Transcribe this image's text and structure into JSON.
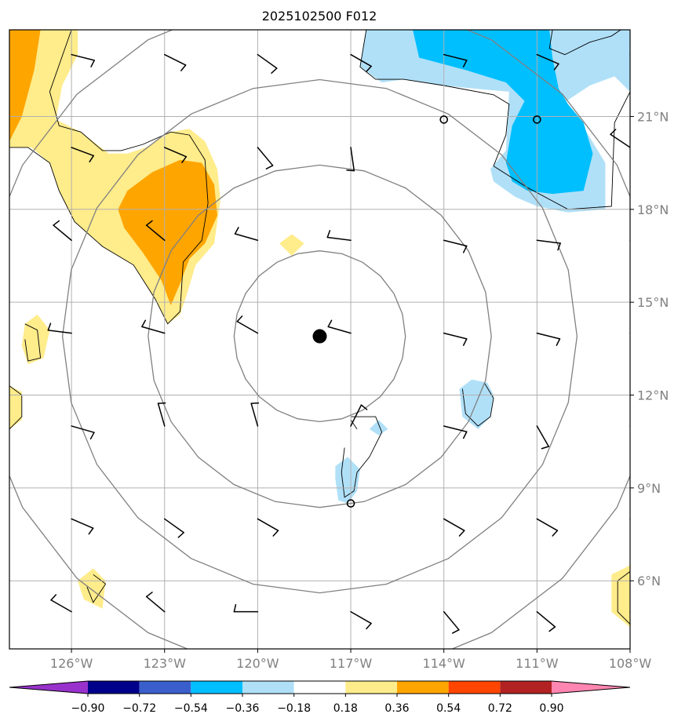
{
  "chart_data": {
    "type": "heatmap",
    "title": "2025102500 F012",
    "projection": "lat-lon map",
    "xlim": [
      -128,
      -108
    ],
    "ylim": [
      3.8,
      23.8
    ],
    "x_ticks": [
      -126,
      -123,
      -120,
      -117,
      -114,
      -111,
      -108
    ],
    "x_tick_labels": [
      "126°W",
      "123°W",
      "120°W",
      "117°W",
      "114°W",
      "111°W",
      "108°W"
    ],
    "y_ticks": [
      6,
      9,
      12,
      15,
      18,
      21
    ],
    "y_tick_labels": [
      "6°N",
      "9°N",
      "12°N",
      "15°N",
      "18°N",
      "21°N"
    ],
    "grid": true,
    "storm_center": {
      "lon": -118,
      "lat": 13.9
    },
    "range_rings_deg": [
      2.76,
      5.53,
      8.29,
      11.06
    ],
    "colorbar": {
      "orientation": "horizontal",
      "extend": "both",
      "levels": [
        -0.9,
        -0.72,
        -0.54,
        -0.36,
        -0.18,
        0.18,
        0.36,
        0.54,
        0.72,
        0.9
      ],
      "tick_labels": [
        "−0.90",
        "−0.72",
        "−0.54",
        "−0.36",
        "−0.18",
        "0.18",
        "0.36",
        "0.54",
        "0.72",
        "0.90"
      ],
      "colors": [
        "#9932cc",
        "#00008b",
        "#3a5fcd",
        "#00bfff",
        "#b0e0f8",
        "#ffffff",
        "#ffec8b",
        "#ffa500",
        "#ff4500",
        "#b22222",
        "#ff86b0"
      ]
    },
    "shaded_regions": [
      {
        "level": 0.18,
        "color": "#ffec8b",
        "points": [
          [
            -128,
            23.8
          ],
          [
            -125.8,
            23.8
          ],
          [
            -125.8,
            23.0
          ],
          [
            -126.3,
            22.0
          ],
          [
            -126.5,
            20.9
          ],
          [
            -125.7,
            20.5
          ],
          [
            -124.8,
            19.8
          ],
          [
            -124.2,
            19.8
          ],
          [
            -123.6,
            20.0
          ],
          [
            -122.8,
            20.5
          ],
          [
            -122.2,
            20.6
          ],
          [
            -121.7,
            20.2
          ],
          [
            -121.3,
            19.3
          ],
          [
            -121.2,
            18.3
          ],
          [
            -121.4,
            16.9
          ],
          [
            -122.0,
            16.2
          ],
          [
            -122.3,
            15.2
          ],
          [
            -122.5,
            14.6
          ],
          [
            -122.9,
            14.3
          ],
          [
            -123.3,
            15.1
          ],
          [
            -124.0,
            16.2
          ],
          [
            -125.0,
            16.8
          ],
          [
            -125.9,
            17.6
          ],
          [
            -126.4,
            18.6
          ],
          [
            -126.7,
            19.5
          ],
          [
            -127.3,
            20.0
          ],
          [
            -128,
            20.0
          ]
        ]
      },
      {
        "level": 0.36,
        "color": "#ffa500",
        "points": [
          [
            -128,
            23.8
          ],
          [
            -127.0,
            23.8
          ],
          [
            -127.2,
            22.5
          ],
          [
            -127.6,
            21.0
          ],
          [
            -128,
            20.2
          ]
        ]
      },
      {
        "level": 0.36,
        "color": "#ffa500",
        "points": [
          [
            -124.2,
            18.6
          ],
          [
            -123.4,
            19.2
          ],
          [
            -122.5,
            19.6
          ],
          [
            -121.8,
            19.5
          ],
          [
            -121.4,
            18.8
          ],
          [
            -121.3,
            17.8
          ],
          [
            -121.7,
            16.9
          ],
          [
            -122.2,
            16.4
          ],
          [
            -122.5,
            15.6
          ],
          [
            -122.8,
            14.9
          ],
          [
            -123.1,
            15.7
          ],
          [
            -123.7,
            16.6
          ],
          [
            -124.3,
            17.4
          ],
          [
            -124.5,
            18.0
          ]
        ]
      },
      {
        "level": 0.18,
        "color": "#ffec8b",
        "points": [
          [
            -127.5,
            14.3
          ],
          [
            -127.1,
            14.6
          ],
          [
            -126.7,
            14.1
          ],
          [
            -126.9,
            13.2
          ],
          [
            -127.4,
            13.0
          ],
          [
            -127.6,
            13.6
          ]
        ]
      },
      {
        "level": 0.18,
        "color": "#ffec8b",
        "points": [
          [
            -128,
            12.3
          ],
          [
            -127.6,
            12.1
          ],
          [
            -127.6,
            11.2
          ],
          [
            -128,
            10.9
          ]
        ]
      },
      {
        "level": 0.18,
        "color": "#ffec8b",
        "points": [
          [
            -118.9,
            17.2
          ],
          [
            -118.5,
            16.9
          ],
          [
            -118.9,
            16.5
          ],
          [
            -119.3,
            16.9
          ]
        ]
      },
      {
        "level": 0.18,
        "color": "#ffec8b",
        "points": [
          [
            -125.3,
            6.4
          ],
          [
            -124.9,
            6.0
          ],
          [
            -125.0,
            5.1
          ],
          [
            -125.6,
            5.4
          ],
          [
            -125.8,
            6.0
          ]
        ]
      },
      {
        "level": 0.18,
        "color": "#ffec8b",
        "points": [
          [
            -108,
            6.5
          ],
          [
            -108.6,
            6.2
          ],
          [
            -108.6,
            5.0
          ],
          [
            -108,
            4.5
          ]
        ]
      },
      {
        "level": -0.18,
        "color": "#b0e0f8",
        "points": [
          [
            -116.5,
            23.8
          ],
          [
            -108,
            23.8
          ],
          [
            -108,
            21.8
          ],
          [
            -108.5,
            22.3
          ],
          [
            -109.3,
            22.0
          ],
          [
            -110.2,
            21.4
          ],
          [
            -109.4,
            20.5
          ],
          [
            -108.8,
            19.5
          ],
          [
            -108.8,
            18.0
          ],
          [
            -110.0,
            17.9
          ],
          [
            -111.0,
            18.1
          ],
          [
            -111.7,
            18.4
          ],
          [
            -112.4,
            18.9
          ],
          [
            -112.5,
            19.3
          ],
          [
            -112.0,
            19.9
          ],
          [
            -111.9,
            21.8
          ],
          [
            -113.0,
            21.9
          ],
          [
            -114.0,
            22.0
          ],
          [
            -115.3,
            22.2
          ],
          [
            -116.0,
            22.1
          ],
          [
            -116.7,
            22.6
          ]
        ]
      },
      {
        "level": -0.36,
        "color": "#00bfff",
        "points": [
          [
            -115.0,
            23.8
          ],
          [
            -110.6,
            23.8
          ],
          [
            -110.5,
            22.9
          ],
          [
            -110.3,
            21.9
          ],
          [
            -110.0,
            21.4
          ],
          [
            -109.5,
            20.8
          ],
          [
            -109.2,
            19.8
          ],
          [
            -109.5,
            18.6
          ],
          [
            -110.5,
            18.5
          ],
          [
            -111.3,
            18.6
          ],
          [
            -111.8,
            18.9
          ],
          [
            -112.0,
            19.5
          ],
          [
            -111.8,
            20.7
          ],
          [
            -111.4,
            21.5
          ],
          [
            -112.0,
            22.1
          ],
          [
            -113.3,
            22.5
          ],
          [
            -114.8,
            22.9
          ]
        ]
      },
      {
        "level": -0.18,
        "color": "#b0e0f8",
        "points": [
          [
            -112.6,
            12.4
          ],
          [
            -112.4,
            12.0
          ],
          [
            -112.5,
            11.3
          ],
          [
            -112.9,
            10.9
          ],
          [
            -113.4,
            11.3
          ],
          [
            -113.5,
            12.2
          ],
          [
            -113.1,
            12.5
          ]
        ]
      },
      {
        "level": -0.18,
        "color": "#b0e0f8",
        "points": [
          [
            -117.1,
            10.0
          ],
          [
            -116.7,
            9.6
          ],
          [
            -116.8,
            8.9
          ],
          [
            -117.1,
            8.5
          ],
          [
            -117.4,
            8.6
          ],
          [
            -117.5,
            9.3
          ],
          [
            -117.5,
            9.7
          ]
        ]
      },
      {
        "level": -0.18,
        "color": "#b0e0f8",
        "points": [
          [
            -116.1,
            11.2
          ],
          [
            -115.8,
            10.9
          ],
          [
            -116.1,
            10.7
          ],
          [
            -116.4,
            10.9
          ]
        ]
      }
    ],
    "zero_contours": [
      [
        [
          -108.0,
          24.0
        ],
        [
          -108.6,
          23.6
        ],
        [
          -109.3,
          23.4
        ],
        [
          -110.1,
          23.0
        ],
        [
          -110.6,
          23.2
        ],
        [
          -110.5,
          23.8
        ]
      ],
      [
        [
          -116.5,
          23.8
        ],
        [
          -116.7,
          22.6
        ],
        [
          -116.2,
          22.2
        ],
        [
          -115.3,
          22.2
        ],
        [
          -114.0,
          22.0
        ],
        [
          -112.4,
          21.7
        ],
        [
          -111.9,
          21.4
        ],
        [
          -112.0,
          20.4
        ],
        [
          -112.4,
          19.4
        ],
        [
          -111.3,
          18.7
        ],
        [
          -110.0,
          18.0
        ],
        [
          -108.6,
          18.1
        ],
        [
          -108.5,
          20.8
        ],
        [
          -108.0,
          21.8
        ]
      ],
      [
        [
          -128,
          20.0
        ],
        [
          -127.4,
          20.0
        ],
        [
          -126.7,
          19.5
        ],
        [
          -126.4,
          18.6
        ],
        [
          -125.9,
          17.6
        ],
        [
          -125.0,
          16.8
        ],
        [
          -124.0,
          16.2
        ],
        [
          -123.3,
          15.1
        ],
        [
          -122.9,
          14.3
        ],
        [
          -122.5,
          14.7
        ],
        [
          -122.4,
          16.3
        ],
        [
          -121.8,
          17.0
        ],
        [
          -121.6,
          18.2
        ],
        [
          -121.7,
          19.6
        ],
        [
          -122.2,
          20.4
        ],
        [
          -122.8,
          20.5
        ],
        [
          -123.7,
          20.1
        ],
        [
          -124.4,
          19.9
        ],
        [
          -125.0,
          19.9
        ],
        [
          -125.7,
          20.5
        ],
        [
          -126.4,
          20.7
        ],
        [
          -126.7,
          21.8
        ],
        [
          -126.0,
          23.8
        ]
      ],
      [
        [
          -127.5,
          14.3
        ],
        [
          -127.1,
          14.1
        ],
        [
          -127.0,
          13.2
        ],
        [
          -127.4,
          13.1
        ],
        [
          -127.5,
          13.8
        ]
      ],
      [
        [
          -128,
          12.3
        ],
        [
          -127.6,
          12.0
        ],
        [
          -127.6,
          11.3
        ],
        [
          -128,
          10.9
        ]
      ],
      [
        [
          -112.7,
          12.4
        ],
        [
          -112.4,
          11.9
        ],
        [
          -112.5,
          11.3
        ],
        [
          -112.9,
          11.0
        ],
        [
          -113.3,
          11.4
        ],
        [
          -113.4,
          12.2
        ]
      ],
      [
        [
          -117.0,
          11.3
        ],
        [
          -116.2,
          11.3
        ],
        [
          -116.0,
          10.8
        ],
        [
          -116.4,
          10.0
        ],
        [
          -116.8,
          9.5
        ],
        [
          -116.9,
          8.9
        ],
        [
          -117.2,
          8.7
        ],
        [
          -117.3,
          9.5
        ],
        [
          -117.2,
          10.3
        ]
      ],
      [
        [
          -117.0,
          11.2
        ],
        [
          -116.8,
          10.9
        ]
      ],
      [
        [
          -125.3,
          6.2
        ],
        [
          -124.9,
          5.9
        ],
        [
          -125.3,
          5.3
        ],
        [
          -125.5,
          5.8
        ]
      ],
      [
        [
          -108,
          6.3
        ],
        [
          -108.4,
          6.0
        ],
        [
          -108.4,
          5.0
        ],
        [
          -108,
          4.6
        ]
      ]
    ],
    "point_markers": [
      {
        "lon": -118.0,
        "lat": 13.9,
        "type": "filled_circle"
      },
      {
        "lon": -114.0,
        "lat": 20.9,
        "type": "open_circle"
      },
      {
        "lon": -111.0,
        "lat": 20.9,
        "type": "open_circle"
      },
      {
        "lon": -117.0,
        "lat": 8.5,
        "type": "open_circle"
      }
    ],
    "wind_barbs": [
      {
        "lon": -126,
        "lat": 23.0,
        "u": 8,
        "v": -2
      },
      {
        "lon": -123,
        "lat": 23.0,
        "u": 8,
        "v": -4
      },
      {
        "lon": -120,
        "lat": 23.0,
        "u": 7,
        "v": -5
      },
      {
        "lon": -117,
        "lat": 23.0,
        "u": 7,
        "v": -4
      },
      {
        "lon": -114,
        "lat": 23.0,
        "u": 8,
        "v": -2
      },
      {
        "lon": -111,
        "lat": 23.0,
        "u": 7,
        "v": -3
      },
      {
        "lon": -108,
        "lat": 23.0,
        "u": 6,
        "v": -2
      },
      {
        "lon": -126,
        "lat": 20.0,
        "u": 8,
        "v": -3
      },
      {
        "lon": -123,
        "lat": 20.0,
        "u": 7,
        "v": -3
      },
      {
        "lon": -120,
        "lat": 20.0,
        "u": 5,
        "v": -6
      },
      {
        "lon": -117,
        "lat": 20.0,
        "u": 1,
        "v": -7
      },
      {
        "lon": -108,
        "lat": 20.0,
        "u": -6,
        "v": 4
      },
      {
        "lon": -126,
        "lat": 17.0,
        "u": -6,
        "v": 5
      },
      {
        "lon": -123,
        "lat": 17.0,
        "u": -6,
        "v": 5
      },
      {
        "lon": -120,
        "lat": 17.0,
        "u": -7,
        "v": 2
      },
      {
        "lon": -117,
        "lat": 17.0,
        "u": -8,
        "v": 1
      },
      {
        "lon": -114,
        "lat": 17.0,
        "u": 8,
        "v": -2
      },
      {
        "lon": -111,
        "lat": 17.0,
        "u": 8,
        "v": -1
      },
      {
        "lon": -108,
        "lat": 17.0,
        "u": 8,
        "v": 0
      },
      {
        "lon": -126,
        "lat": 14.0,
        "u": -8,
        "v": 1
      },
      {
        "lon": -123,
        "lat": 14.0,
        "u": -7,
        "v": 2
      },
      {
        "lon": -120,
        "lat": 14.0,
        "u": -7,
        "v": 4
      },
      {
        "lon": -117,
        "lat": 14.0,
        "u": -7,
        "v": 2
      },
      {
        "lon": -114,
        "lat": 14.0,
        "u": 8,
        "v": -2
      },
      {
        "lon": -111,
        "lat": 14.0,
        "u": 8,
        "v": -2
      },
      {
        "lon": -108,
        "lat": 14.0,
        "u": 7,
        "v": -1
      },
      {
        "lon": -126,
        "lat": 11.0,
        "u": 7,
        "v": -2
      },
      {
        "lon": -123,
        "lat": 11.0,
        "u": -2,
        "v": 7
      },
      {
        "lon": -120,
        "lat": 11.0,
        "u": -2,
        "v": 7
      },
      {
        "lon": -117,
        "lat": 11.0,
        "u": 3,
        "v": 6
      },
      {
        "lon": -114,
        "lat": 11.0,
        "u": 8,
        "v": -2
      },
      {
        "lon": -111,
        "lat": 11.0,
        "u": 4,
        "v": -7
      },
      {
        "lon": -108,
        "lat": 11.0,
        "u": 6,
        "v": -2
      },
      {
        "lon": -126,
        "lat": 8.0,
        "u": 7,
        "v": -3
      },
      {
        "lon": -123,
        "lat": 8.0,
        "u": 7,
        "v": -5
      },
      {
        "lon": -120,
        "lat": 8.0,
        "u": 7,
        "v": -4
      },
      {
        "lon": -114,
        "lat": 8.0,
        "u": 7,
        "v": -4
      },
      {
        "lon": -111,
        "lat": 8.0,
        "u": 7,
        "v": -4
      },
      {
        "lon": -108,
        "lat": 8.0,
        "u": 4,
        "v": -6
      },
      {
        "lon": -126,
        "lat": 5.0,
        "u": -7,
        "v": 4
      },
      {
        "lon": -123,
        "lat": 5.0,
        "u": -6,
        "v": 5
      },
      {
        "lon": -120,
        "lat": 5.0,
        "u": -7,
        "v": 0
      },
      {
        "lon": -117,
        "lat": 5.0,
        "u": 7,
        "v": -4
      },
      {
        "lon": -114,
        "lat": 5.0,
        "u": 5,
        "v": -6
      },
      {
        "lon": -111,
        "lat": 5.0,
        "u": 6,
        "v": -5
      },
      {
        "lon": -108,
        "lat": 5.0,
        "u": 4,
        "v": -6
      }
    ]
  }
}
